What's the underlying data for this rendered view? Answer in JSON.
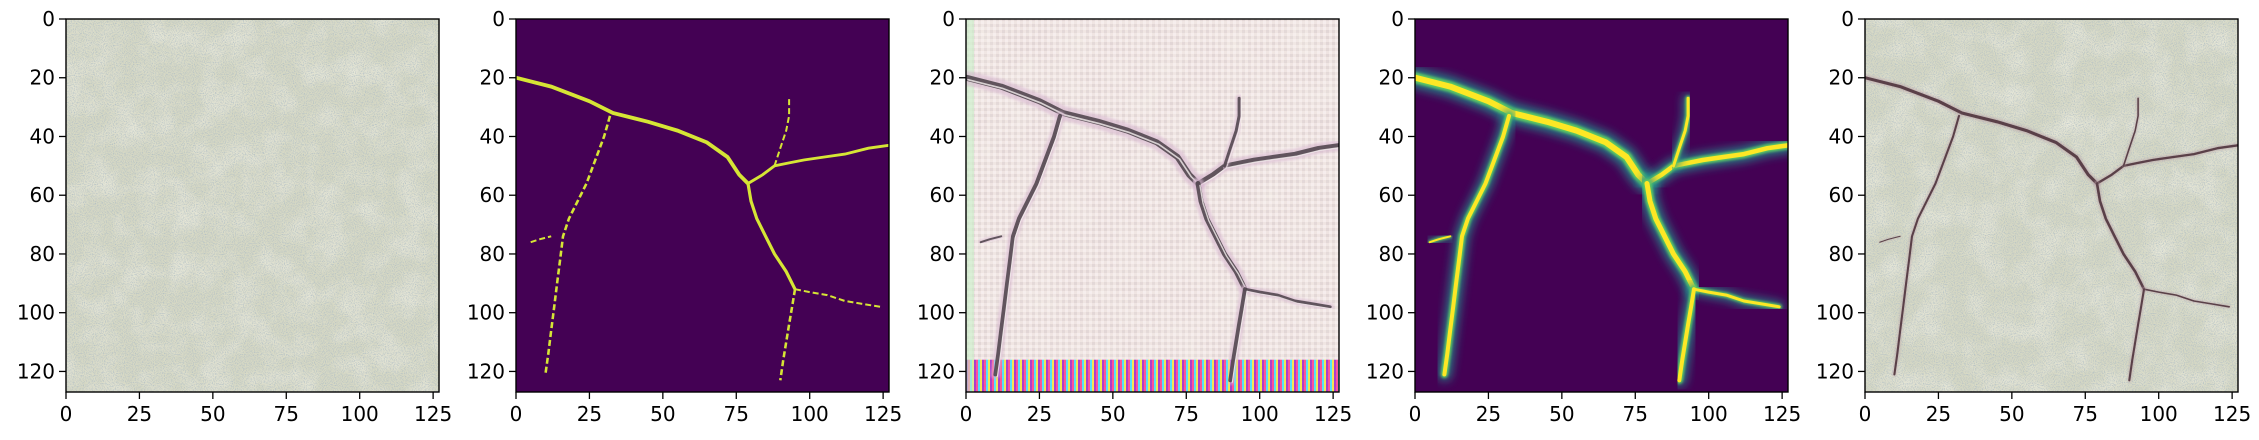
{
  "chart_data": {
    "type": "image-panels",
    "panels": [
      {
        "name": "input",
        "content": "concrete-texture",
        "xlim": [
          0,
          127
        ],
        "ylim": [
          127,
          0
        ],
        "xticks": [
          0,
          25,
          50,
          75,
          100,
          125
        ],
        "yticks": [
          0,
          20,
          40,
          60,
          80,
          100,
          120
        ],
        "colors": {
          "base": "#d6d8c4",
          "speckle": "#7d8c94",
          "bright": "#ecebd6"
        }
      },
      {
        "name": "ground-truth-mask",
        "content": "binary-mask",
        "xlim": [
          0,
          127
        ],
        "ylim": [
          127,
          0
        ],
        "xticks": [
          0,
          25,
          50,
          75,
          100,
          125
        ],
        "yticks": [
          0,
          20,
          40,
          60,
          80,
          100,
          120
        ],
        "colors": {
          "background": "#440154",
          "foreground": "#d6e535"
        }
      },
      {
        "name": "generated-image",
        "content": "synthetic-crack-texture",
        "xlim": [
          0,
          127
        ],
        "ylim": [
          127,
          0
        ],
        "xticks": [
          0,
          25,
          50,
          75,
          100,
          125
        ],
        "yticks": [
          0,
          20,
          40,
          60,
          80,
          100,
          120
        ],
        "colors": {
          "base": "#e8dcd8",
          "crack": "#4a4048",
          "bright": "#f4eeee"
        }
      },
      {
        "name": "predicted-probability",
        "content": "probability-map",
        "xlim": [
          0,
          127
        ],
        "ylim": [
          127,
          0
        ],
        "xticks": [
          0,
          25,
          50,
          75,
          100,
          125
        ],
        "yticks": [
          0,
          20,
          40,
          60,
          80,
          100,
          120
        ],
        "colors": {
          "background": "#440154",
          "mid": "#21918c",
          "high": "#fde725"
        }
      },
      {
        "name": "overlay",
        "content": "cracked-concrete",
        "xlim": [
          0,
          127
        ],
        "ylim": [
          127,
          0
        ],
        "xticks": [
          0,
          25,
          50,
          75,
          100,
          125
        ],
        "yticks": [
          0,
          20,
          40,
          60,
          80,
          100,
          120
        ],
        "colors": {
          "base": "#d6d8c4",
          "crack": "#5a4048",
          "bright": "#ecebd6"
        }
      }
    ],
    "cracks": [
      {
        "name": "main",
        "points": [
          [
            0,
            20
          ],
          [
            12,
            23
          ],
          [
            25,
            28
          ],
          [
            33,
            32
          ],
          [
            45,
            35
          ],
          [
            55,
            38
          ],
          [
            65,
            42
          ],
          [
            72,
            47
          ],
          [
            76,
            53
          ],
          [
            79,
            56
          ]
        ],
        "weight": 1.2
      },
      {
        "name": "left-branch",
        "points": [
          [
            32,
            33
          ],
          [
            30,
            40
          ],
          [
            27,
            48
          ],
          [
            24,
            56
          ],
          [
            21,
            62
          ],
          [
            18,
            68
          ],
          [
            16,
            74
          ],
          [
            15,
            82
          ],
          [
            14,
            90
          ],
          [
            13,
            98
          ],
          [
            12,
            106
          ],
          [
            11,
            114
          ],
          [
            10,
            121
          ]
        ],
        "weight": 0.8
      },
      {
        "name": "upper-right",
        "points": [
          [
            79,
            56
          ],
          [
            84,
            53
          ],
          [
            88,
            50
          ],
          [
            93,
            49
          ],
          [
            98,
            48
          ],
          [
            105,
            47
          ],
          [
            112,
            46
          ],
          [
            120,
            44
          ],
          [
            127,
            43
          ]
        ],
        "weight": 0.9
      },
      {
        "name": "upper-spur",
        "points": [
          [
            88,
            50
          ],
          [
            90,
            44
          ],
          [
            92,
            38
          ],
          [
            93,
            33
          ],
          [
            93,
            27
          ]
        ],
        "weight": 0.6
      },
      {
        "name": "lower-trunk",
        "points": [
          [
            79,
            56
          ],
          [
            80,
            62
          ],
          [
            82,
            68
          ],
          [
            85,
            74
          ],
          [
            88,
            80
          ],
          [
            92,
            86
          ],
          [
            95,
            92
          ]
        ],
        "weight": 1.0
      },
      {
        "name": "lower-right",
        "points": [
          [
            95,
            92
          ],
          [
            100,
            93
          ],
          [
            106,
            94
          ],
          [
            112,
            96
          ],
          [
            118,
            97
          ],
          [
            124,
            98
          ]
        ],
        "weight": 0.6
      },
      {
        "name": "lower-down",
        "points": [
          [
            95,
            92
          ],
          [
            94,
            98
          ],
          [
            93,
            104
          ],
          [
            92,
            110
          ],
          [
            91,
            116
          ],
          [
            90,
            123
          ]
        ],
        "weight": 0.8
      },
      {
        "name": "left-stub",
        "points": [
          [
            5,
            76
          ],
          [
            8,
            75
          ],
          [
            12,
            74
          ]
        ],
        "weight": 0.4
      }
    ]
  }
}
